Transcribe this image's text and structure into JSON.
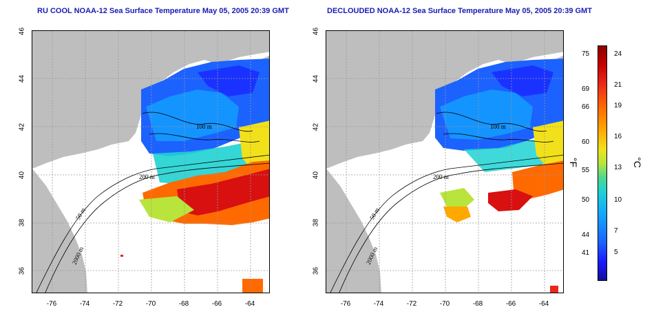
{
  "panels": [
    {
      "title": "RU COOL NOAA-12 Sea Surface Temperature May 05, 2005 20:39 GMT",
      "contour_labels": {
        "c200": "200 m",
        "c50": "50 m",
        "c2000": "2000 m",
        "c100": "100 m"
      }
    },
    {
      "title": "DECLOUDED NOAA-12 Sea Surface Temperature May 05, 2005 20:39 GMT",
      "contour_labels": {
        "c200": "200 m",
        "c50": "50 m",
        "c2000": "2000 m",
        "c100": "100 m"
      }
    }
  ],
  "axes": {
    "y_ticks": [
      "46",
      "44",
      "42",
      "40",
      "38",
      "36"
    ],
    "x_ticks": [
      "-76",
      "-74",
      "-72",
      "-70",
      "-68",
      "-66",
      "-64"
    ],
    "lat_range": [
      35,
      46
    ],
    "lon_range": [
      -77,
      -63
    ]
  },
  "colorbar": {
    "fahrenheit_ticks": [
      "75",
      "69",
      "66",
      "60",
      "55",
      "50",
      "44",
      "41"
    ],
    "celsius_ticks": [
      "24",
      "21",
      "19",
      "16",
      "13",
      "10",
      "7",
      "5"
    ],
    "fahrenheit_unit": "°F",
    "celsius_unit": "°C"
  },
  "colors": {
    "land": "#bebebe",
    "ocean_blank": "#ffffff",
    "grid": "#9a9a9a",
    "title": "#1a1ab4"
  }
}
